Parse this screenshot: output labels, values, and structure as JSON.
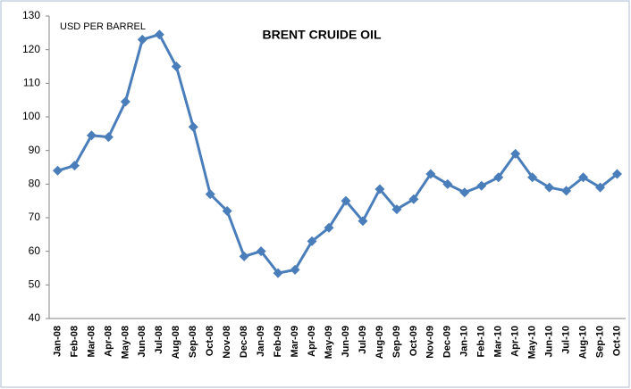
{
  "chart_data": {
    "type": "line",
    "title": "BRENT CRUIDE OIL",
    "y_label": "USD PER BARREL",
    "categories": [
      "Jan-08",
      "Feb-08",
      "Mar-08",
      "Apr-08",
      "May-08",
      "Jun-08",
      "Jul-08",
      "Aug-08",
      "Sep-08",
      "Oct-08",
      "Nov-08",
      "Dec-08",
      "Jan-09",
      "Feb-09",
      "Mar-09",
      "Apr-09",
      "May-09",
      "Jun-09",
      "Jul-09",
      "Aug-09",
      "Sep-09",
      "Oct-09",
      "Nov-09",
      "Dec-09",
      "Jan-10",
      "Feb-10",
      "Mar-10",
      "Apr-10",
      "May-10",
      "Jun-10",
      "Jul-10",
      "Aug-10",
      "Sep-10",
      "Oct-10"
    ],
    "series": [
      {
        "name": "Brent",
        "color": "#4a7ebb",
        "values": [
          84,
          85.5,
          94.5,
          94,
          104.5,
          123,
          124.5,
          115,
          97,
          77,
          72,
          58.5,
          60,
          53.5,
          54.5,
          63,
          67,
          75,
          69,
          78.5,
          72.5,
          75.5,
          83,
          80,
          77.5,
          79.5,
          82,
          89,
          82,
          79,
          78,
          82,
          79,
          83
        ]
      }
    ],
    "ylim": [
      40,
      130
    ],
    "yticks": [
      40,
      50,
      60,
      70,
      80,
      90,
      100,
      110,
      120,
      130
    ],
    "grid": false
  }
}
